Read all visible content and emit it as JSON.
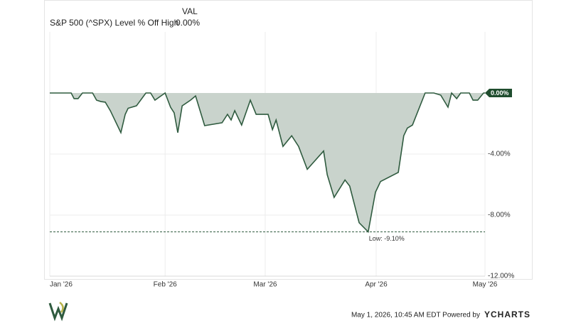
{
  "chart_data": {
    "type": "area",
    "legend_header": "VAL",
    "current_label": "0.00%",
    "footer": "May 1, 2026, 10:45 AM EDT Powered by",
    "brand": "YCHARTS",
    "xlim": [
      0,
      120
    ],
    "xticks": [
      {
        "value": 0,
        "label": "Jan '26"
      },
      {
        "value": 31.8,
        "label": "Feb '26"
      },
      {
        "value": 59.4,
        "label": "Mar '26"
      },
      {
        "value": 90,
        "label": "Apr '26"
      },
      {
        "value": 120,
        "label": "May '26"
      }
    ],
    "ylim": [
      -12,
      4
    ],
    "yticks": [
      {
        "value": -4,
        "label": "-4.00%"
      },
      {
        "value": -8,
        "label": "-8.00%"
      },
      {
        "value": -12,
        "label": "-12.00%"
      }
    ],
    "grid": true,
    "low": {
      "value": -9.1,
      "label": "Low: -9.10%"
    },
    "series": [
      {
        "name": "S&P 500 (^SPX) Level % Off High",
        "color": "#2f5b3f",
        "fill": "#c9d3cc",
        "x": [
          0,
          5.9,
          6.7,
          7.8,
          9.0,
          11.8,
          12.9,
          14.1,
          15.3,
          16.7,
          19.6,
          20.8,
          21.6,
          23.9,
          26.5,
          27.8,
          29.0,
          31.8,
          33.3,
          34.3,
          35.3,
          36.5,
          38.8,
          40.2,
          42.7,
          47.5,
          49.0,
          50.0,
          51.0,
          52.9,
          55.3,
          56.9,
          60.2,
          61.4,
          62.4,
          64.3,
          66.7,
          68.6,
          71.0,
          75.5,
          76.5,
          78.4,
          81.4,
          82.7,
          85.3,
          87.8,
          89.8,
          91.2,
          96.1,
          97.6,
          98.6,
          100,
          103.5,
          105.9,
          107.8,
          109.8,
          110.8,
          112.2,
          113.3,
          115.7,
          116.7,
          118.0,
          119.6,
          120
        ],
        "values": [
          0,
          0,
          -0.37,
          -0.37,
          0,
          0,
          -0.47,
          -0.56,
          -0.6,
          -1.16,
          -2.6,
          -1.4,
          -1.0,
          -0.84,
          0,
          0,
          -0.47,
          0,
          -0.93,
          -1.3,
          -2.6,
          -0.84,
          -0.47,
          -0.19,
          -2.14,
          -1.95,
          -1.4,
          -1.77,
          -1.16,
          -2.1,
          -0.47,
          -1.4,
          -1.4,
          -2.4,
          -1.77,
          -3.5,
          -2.8,
          -3.5,
          -5.0,
          -3.8,
          -5.35,
          -6.84,
          -5.7,
          -6.1,
          -8.5,
          -9.1,
          -6.5,
          -5.8,
          -5.2,
          -2.8,
          -2.3,
          -2.1,
          0,
          0,
          -0.14,
          -0.93,
          0,
          -0.37,
          0,
          0,
          -0.47,
          -0.47,
          0,
          0
        ]
      }
    ]
  }
}
